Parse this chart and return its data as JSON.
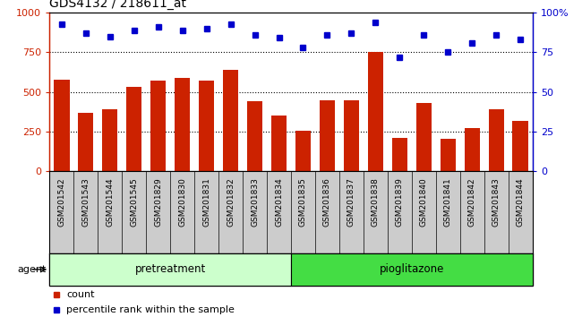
{
  "title": "GDS4132 / 218611_at",
  "categories": [
    "GSM201542",
    "GSM201543",
    "GSM201544",
    "GSM201545",
    "GSM201829",
    "GSM201830",
    "GSM201831",
    "GSM201832",
    "GSM201833",
    "GSM201834",
    "GSM201835",
    "GSM201836",
    "GSM201837",
    "GSM201838",
    "GSM201839",
    "GSM201840",
    "GSM201841",
    "GSM201842",
    "GSM201843",
    "GSM201844"
  ],
  "counts": [
    580,
    370,
    390,
    530,
    570,
    590,
    570,
    640,
    440,
    350,
    255,
    450,
    450,
    750,
    210,
    430,
    205,
    270,
    390,
    320
  ],
  "percentiles": [
    93,
    87,
    85,
    89,
    91,
    89,
    90,
    93,
    86,
    84,
    78,
    86,
    87,
    94,
    72,
    86,
    75,
    81,
    86,
    83
  ],
  "bar_color": "#cc2200",
  "dot_color": "#0000cc",
  "ylim_left": [
    0,
    1000
  ],
  "ylim_right": [
    0,
    100
  ],
  "yticks_left": [
    0,
    250,
    500,
    750,
    1000
  ],
  "yticks_right": [
    0,
    25,
    50,
    75,
    100
  ],
  "grid_values": [
    250,
    500,
    750
  ],
  "pretreatment_count": 10,
  "pioglitazone_count": 10,
  "pretreatment_label": "pretreatment",
  "pioglitazone_label": "pioglitazone",
  "agent_label": "agent",
  "legend_count_label": "count",
  "legend_pct_label": "percentile rank within the sample",
  "pretreatment_color": "#ccffcc",
  "pioglitazone_color": "#44dd44",
  "xtick_bg_color": "#cccccc",
  "title_color": "#000000",
  "left_axis_color": "#cc2200",
  "right_axis_color": "#0000cc"
}
